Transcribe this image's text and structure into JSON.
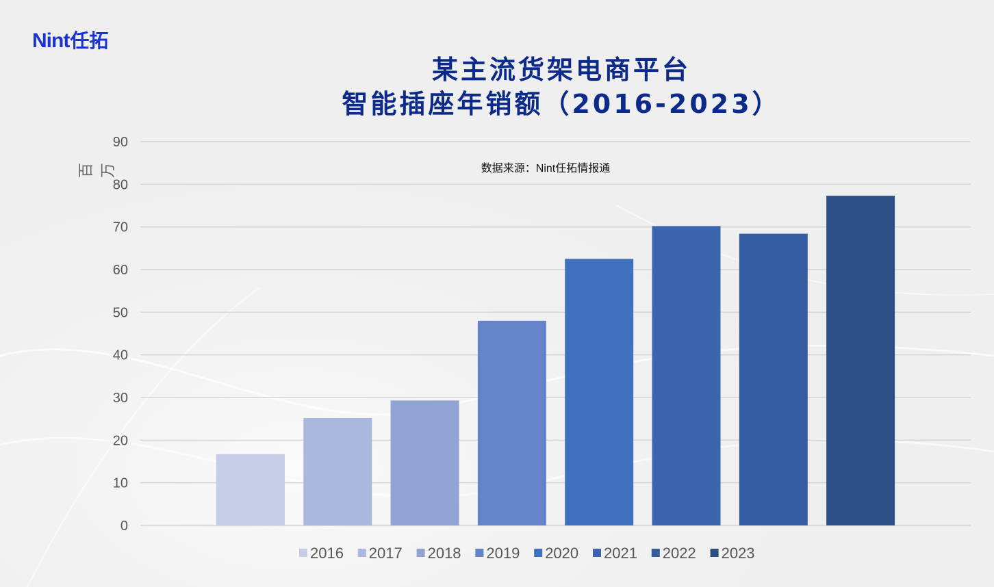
{
  "logo": {
    "latin": "Nint",
    "cjk": "任拓"
  },
  "title_line1": "某主流货架电商平台",
  "title_line2": "智能插座年销额（2016-2023）",
  "source": "数据来源：Nint任拓情报通",
  "y_unit": "百万",
  "chart_data": {
    "type": "bar",
    "categories": [
      "2016",
      "2017",
      "2018",
      "2019",
      "2020",
      "2021",
      "2022",
      "2023"
    ],
    "values": [
      16.7,
      25.2,
      29.3,
      48.0,
      62.5,
      70.2,
      68.4,
      77.3
    ],
    "colors": [
      "#c5cce6",
      "#aab7df",
      "#90a3d4",
      "#6683ca",
      "#4170bf",
      "#3c65ae",
      "#355ba1",
      "#2d4f88"
    ],
    "ylim": [
      0,
      90
    ],
    "yticks": [
      0,
      10,
      20,
      30,
      40,
      50,
      60,
      70,
      80,
      90
    ],
    "ylabel": "百万",
    "grid": true,
    "legend": "bottom"
  }
}
